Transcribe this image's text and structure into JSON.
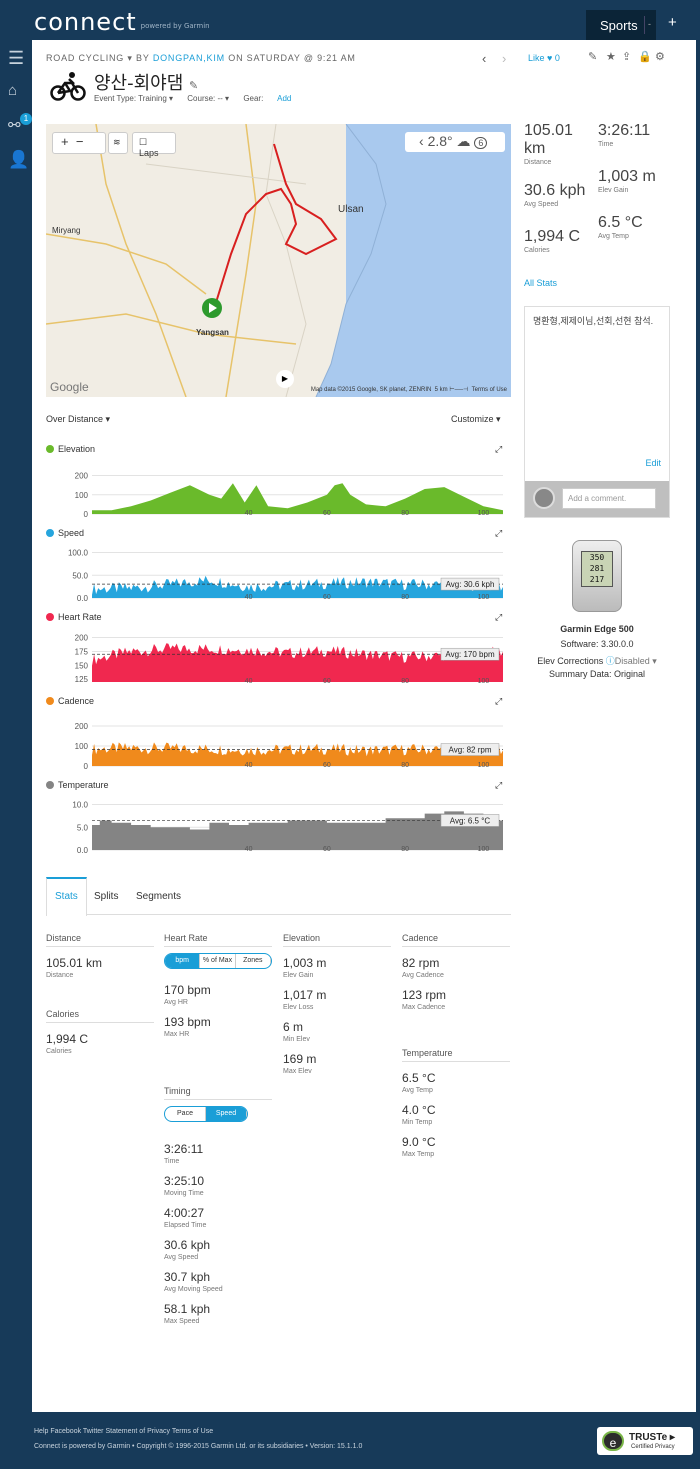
{
  "topbar": {
    "logo": "connect",
    "powered": "powered by Garmin",
    "sports": "Sports",
    "sports_dd": "-",
    "plus": "+"
  },
  "sidebar": {
    "badge": "1"
  },
  "header": {
    "activity_type": "ROAD CYCLING",
    "by": "BY",
    "user": "DONGPAN,KIM",
    "on": "ON SATURDAY @ 9:21 AM",
    "like": "Like",
    "like_count": "0",
    "title": "양산-회야댐",
    "event_type": "Event Type: Training ▾",
    "course": "Course: -- ▾",
    "gear_label": "Gear:",
    "gear_add": "Add"
  },
  "map": {
    "laps": "Laps",
    "temp": "2.8°",
    "count": "6",
    "labels": [
      "Ulsan",
      "Miryang",
      "Yangsan",
      "Google"
    ],
    "copyright": "Map data ©2015 Google, SK planet, ZENRIN",
    "scale": "5 km",
    "terms": "Terms of Use"
  },
  "summary": [
    {
      "value": "105.01 km",
      "label": "Distance"
    },
    {
      "value": "3:26:11",
      "label": "Time"
    },
    {
      "value": "30.6 kph",
      "label": "Avg Speed"
    },
    {
      "value": "1,003 m",
      "label": "Elev Gain"
    },
    {
      "value": "1,994 C",
      "label": "Calories"
    },
    {
      "value": "6.5 °C",
      "label": "Avg Temp"
    }
  ],
  "all_stats": "All Stats",
  "note": {
    "text": "명환형,제제이님,선회,선현 참석.",
    "edit": "Edit",
    "comment_placeholder": "Add a comment."
  },
  "device": {
    "screen": [
      "350",
      "281",
      "217"
    ],
    "name": "Garmin Edge 500",
    "software": "Software: 3.30.0.0",
    "elev_corr": "Elev Corrections",
    "elev_status": "Disabled ▾",
    "summary": "Summary Data: Original"
  },
  "charts_header": {
    "over": "Over Distance ▾",
    "customize": "Customize ▾"
  },
  "charts": [
    {
      "name": "Elevation",
      "color": "#6aba2b",
      "yticks": [
        "200",
        "100",
        "0"
      ],
      "ylim": [
        0,
        260
      ],
      "avg": ""
    },
    {
      "name": "Speed",
      "color": "#26a5dd",
      "yticks": [
        "100.0",
        "50.0",
        "0.0"
      ],
      "ylim": [
        0,
        110
      ],
      "avg": "Avg: 30.6 kph"
    },
    {
      "name": "Heart Rate",
      "color": "#f0284f",
      "yticks": [
        "200",
        "175",
        "150",
        "125"
      ],
      "ylim": [
        120,
        210
      ],
      "avg": "Avg: 170 bpm"
    },
    {
      "name": "Cadence",
      "color": "#f08a1c",
      "yticks": [
        "200",
        "100",
        "0"
      ],
      "ylim": [
        0,
        250
      ],
      "avg": "Avg: 82 rpm"
    },
    {
      "name": "Temperature",
      "color": "#848484",
      "yticks": [
        "10.0",
        "5.0",
        "0.0"
      ],
      "ylim": [
        0,
        11
      ],
      "avg": "Avg: 6.5 °C"
    }
  ],
  "xticks": [
    "40",
    "60",
    "80",
    "100"
  ],
  "chart_data": [
    {
      "type": "area",
      "title": "Elevation",
      "x": [
        0,
        5,
        10,
        15,
        20,
        25,
        30,
        33,
        36,
        39,
        42,
        45,
        50,
        55,
        60,
        62,
        64,
        66,
        70,
        75,
        80,
        85,
        90,
        95,
        100,
        105
      ],
      "values": [
        20,
        20,
        40,
        70,
        110,
        150,
        100,
        80,
        160,
        60,
        150,
        40,
        30,
        60,
        100,
        150,
        160,
        100,
        50,
        40,
        80,
        130,
        140,
        90,
        40,
        20
      ],
      "ylim": [
        0,
        260
      ]
    },
    {
      "type": "area",
      "title": "Speed",
      "x": [
        0,
        10,
        20,
        30,
        40,
        50,
        60,
        70,
        80,
        90,
        100,
        105
      ],
      "values": [
        20,
        22,
        30,
        40,
        25,
        28,
        32,
        35,
        30,
        30,
        28,
        25
      ],
      "avg": 30.6,
      "ylim": [
        0,
        110
      ]
    },
    {
      "type": "area",
      "title": "Heart Rate",
      "x": [
        0,
        10,
        20,
        30,
        40,
        50,
        60,
        70,
        80,
        90,
        100,
        105
      ],
      "values": [
        160,
        175,
        180,
        180,
        178,
        172,
        176,
        170,
        165,
        168,
        172,
        175
      ],
      "avg": 170,
      "ylim": [
        120,
        210
      ]
    },
    {
      "type": "area",
      "title": "Cadence",
      "x": [
        0,
        10,
        20,
        30,
        40,
        50,
        60,
        70,
        80,
        90,
        100,
        105
      ],
      "values": [
        85,
        90,
        88,
        85,
        80,
        82,
        85,
        78,
        82,
        84,
        86,
        80
      ],
      "avg": 82,
      "ylim": [
        0,
        250
      ]
    },
    {
      "type": "area",
      "title": "Temperature",
      "x": [
        0,
        2,
        5,
        10,
        15,
        20,
        25,
        30,
        35,
        40,
        45,
        50,
        55,
        60,
        65,
        70,
        75,
        80,
        85,
        90,
        95,
        100,
        103,
        105
      ],
      "values": [
        5.5,
        6.5,
        6.0,
        5.5,
        5.0,
        5.0,
        4.5,
        6.0,
        5.5,
        6.0,
        6.0,
        6.5,
        6.5,
        6.0,
        6.0,
        6.0,
        7.0,
        7.0,
        8.0,
        8.5,
        8.0,
        7.5,
        6.5,
        8.0
      ],
      "avg": 6.5,
      "ylim": [
        0,
        11
      ]
    }
  ],
  "tabs": [
    "Stats",
    "Splits",
    "Segments"
  ],
  "stats": {
    "distance": {
      "head": "Distance",
      "items": [
        {
          "v": "105.01 km",
          "l": "Distance"
        }
      ]
    },
    "calories": {
      "head": "Calories",
      "items": [
        {
          "v": "1,994 C",
          "l": "Calories"
        }
      ]
    },
    "hr": {
      "head": "Heart Rate",
      "seg": [
        "bpm",
        "% of Max",
        "Zones"
      ],
      "items": [
        {
          "v": "170 bpm",
          "l": "Avg HR"
        },
        {
          "v": "193 bpm",
          "l": "Max HR"
        }
      ]
    },
    "timing": {
      "head": "Timing",
      "seg": [
        "Pace",
        "Speed"
      ],
      "items": [
        {
          "v": "3:26:11",
          "l": "Time"
        },
        {
          "v": "3:25:10",
          "l": "Moving Time"
        },
        {
          "v": "4:00:27",
          "l": "Elapsed Time"
        },
        {
          "v": "30.6 kph",
          "l": "Avg Speed"
        },
        {
          "v": "30.7 kph",
          "l": "Avg Moving Speed"
        },
        {
          "v": "58.1 kph",
          "l": "Max Speed"
        }
      ]
    },
    "elevation": {
      "head": "Elevation",
      "items": [
        {
          "v": "1,003 m",
          "l": "Elev Gain"
        },
        {
          "v": "1,017 m",
          "l": "Elev Loss"
        },
        {
          "v": "6 m",
          "l": "Min Elev"
        },
        {
          "v": "169 m",
          "l": "Max Elev"
        }
      ]
    },
    "cadence": {
      "head": "Cadence",
      "items": [
        {
          "v": "82 rpm",
          "l": "Avg Cadence"
        },
        {
          "v": "123 rpm",
          "l": "Max Cadence"
        }
      ]
    },
    "temperature": {
      "head": "Temperature",
      "items": [
        {
          "v": "6.5 °C",
          "l": "Avg Temp"
        },
        {
          "v": "4.0 °C",
          "l": "Min Temp"
        },
        {
          "v": "9.0 °C",
          "l": "Max Temp"
        }
      ]
    }
  },
  "footer": {
    "links": "Help Facebook Twitter Statement of Privacy Terms of Use",
    "copy": "Connect is powered by Garmin • Copyright © 1996-2015 Garmin Ltd. or its subsidiaries • Version: 15.1.1.0"
  },
  "truste": {
    "name": "TRUSTe ▸",
    "sub": "Certified Privacy"
  }
}
